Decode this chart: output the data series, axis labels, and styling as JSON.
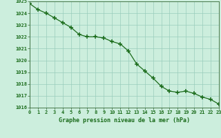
{
  "hours": [
    0,
    1,
    2,
    3,
    4,
    5,
    6,
    7,
    8,
    9,
    10,
    11,
    12,
    13,
    14,
    15,
    16,
    17,
    18,
    19,
    20,
    21,
    22,
    23
  ],
  "pressure": [
    1024.8,
    1024.3,
    1024.0,
    1023.6,
    1023.2,
    1022.8,
    1022.2,
    1022.0,
    1022.0,
    1021.9,
    1021.6,
    1021.4,
    1020.8,
    1019.7,
    1019.1,
    1018.5,
    1017.8,
    1017.4,
    1017.3,
    1017.4,
    1017.2,
    1016.9,
    1016.7,
    1016.3
  ],
  "ylim": [
    1016,
    1025
  ],
  "yticks": [
    1016,
    1017,
    1018,
    1019,
    1020,
    1021,
    1022,
    1023,
    1024,
    1025
  ],
  "xticks": [
    0,
    1,
    2,
    3,
    4,
    5,
    6,
    7,
    8,
    9,
    10,
    11,
    12,
    13,
    14,
    15,
    16,
    17,
    18,
    19,
    20,
    21,
    22,
    23
  ],
  "line_color": "#1a6b1a",
  "marker_color": "#1a6b1a",
  "bg_color": "#cceedd",
  "grid_color": "#99ccbb",
  "label_color": "#1a6b1a",
  "xlabel": "Graphe pression niveau de la mer (hPa)",
  "xlabel_color": "#1a6b1a",
  "spine_color": "#336633",
  "tick_color": "#336633"
}
